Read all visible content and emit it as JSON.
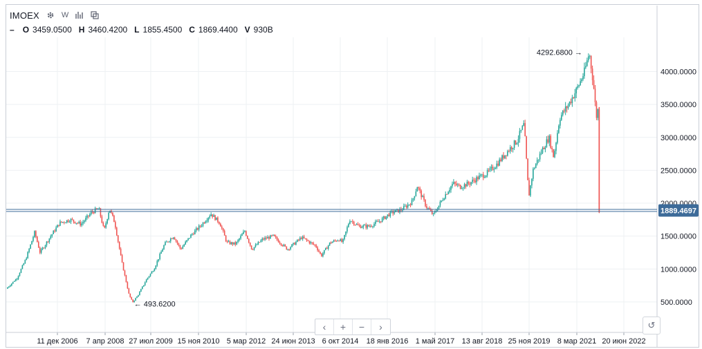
{
  "header": {
    "symbol": "IMOEX",
    "gear_icon": "gear-icon",
    "week_label": "W",
    "bars_icon": "bars-icon",
    "compare_icon": "compare-icon"
  },
  "ohlc": {
    "dash": "–",
    "o_label": "O",
    "o_value": "3459.0500",
    "h_label": "H",
    "h_value": "3460.4200",
    "l_label": "L",
    "l_value": "1855.4500",
    "c_label": "C",
    "c_value": "1869.4400",
    "v_label": "V",
    "v_value": "930B"
  },
  "nav": {
    "left": "‹",
    "zoom_in": "+",
    "zoom_out": "−",
    "right": "›",
    "reset": "↺"
  },
  "colors": {
    "up": "#26a69a",
    "down": "#ef5350",
    "price_line": "#3d6b99",
    "price_badge": "#3d6b99",
    "grid": "#eef0f3",
    "axis_text": "#131722"
  },
  "chart_data": {
    "type": "candlestick",
    "symbol": "IMOEX",
    "interval": "W",
    "y_ticks": [
      "4000.0000",
      "3500.0000",
      "3000.0000",
      "2500.0000",
      "2000.0000",
      "1500.0000",
      "1000.0000",
      "500.0000"
    ],
    "x_ticks": [
      "11 дек 2006",
      "7 апр 2008",
      "27 июл 2009",
      "15 ноя 2010",
      "5 мар 2012",
      "24 июн 2013",
      "6 окт 2014",
      "18 янв 2016",
      "1 май 2017",
      "13 авг 2018",
      "25 ноя 2019",
      "8 мар 2021",
      "20 июн 2022"
    ],
    "current_price": "1889.4697",
    "current_value": 1889.4697,
    "max_annotation": "4292.6800",
    "min_annotation": "493.6200",
    "max_value": 4292.68,
    "min_value": 493.62,
    "ylim": [
      0,
      4600
    ],
    "series": [
      {
        "t": 2005.5,
        "v": 700
      },
      {
        "t": 2005.8,
        "v": 860
      },
      {
        "t": 2006.05,
        "v": 1150
      },
      {
        "t": 2006.3,
        "v": 1560
      },
      {
        "t": 2006.45,
        "v": 1250
      },
      {
        "t": 2006.75,
        "v": 1500
      },
      {
        "t": 2007.0,
        "v": 1700
      },
      {
        "t": 2007.3,
        "v": 1750
      },
      {
        "t": 2007.6,
        "v": 1680
      },
      {
        "t": 2007.9,
        "v": 1860
      },
      {
        "t": 2008.1,
        "v": 1920
      },
      {
        "t": 2008.25,
        "v": 1580
      },
      {
        "t": 2008.4,
        "v": 1920
      },
      {
        "t": 2008.55,
        "v": 1700
      },
      {
        "t": 2008.75,
        "v": 1100
      },
      {
        "t": 2008.95,
        "v": 610
      },
      {
        "t": 2009.05,
        "v": 494
      },
      {
        "t": 2009.2,
        "v": 600
      },
      {
        "t": 2009.45,
        "v": 850
      },
      {
        "t": 2009.65,
        "v": 1000
      },
      {
        "t": 2009.95,
        "v": 1380
      },
      {
        "t": 2010.2,
        "v": 1500
      },
      {
        "t": 2010.4,
        "v": 1300
      },
      {
        "t": 2010.7,
        "v": 1520
      },
      {
        "t": 2011.0,
        "v": 1680
      },
      {
        "t": 2011.25,
        "v": 1840
      },
      {
        "t": 2011.5,
        "v": 1700
      },
      {
        "t": 2011.7,
        "v": 1400
      },
      {
        "t": 2011.95,
        "v": 1380
      },
      {
        "t": 2012.2,
        "v": 1580
      },
      {
        "t": 2012.4,
        "v": 1300
      },
      {
        "t": 2012.7,
        "v": 1450
      },
      {
        "t": 2013.0,
        "v": 1500
      },
      {
        "t": 2013.4,
        "v": 1300
      },
      {
        "t": 2013.8,
        "v": 1480
      },
      {
        "t": 2014.2,
        "v": 1350
      },
      {
        "t": 2014.35,
        "v": 1200
      },
      {
        "t": 2014.6,
        "v": 1400
      },
      {
        "t": 2014.85,
        "v": 1450
      },
      {
        "t": 2014.95,
        "v": 1400
      },
      {
        "t": 2015.15,
        "v": 1750
      },
      {
        "t": 2015.4,
        "v": 1650
      },
      {
        "t": 2015.7,
        "v": 1650
      },
      {
        "t": 2016.0,
        "v": 1730
      },
      {
        "t": 2016.3,
        "v": 1850
      },
      {
        "t": 2016.6,
        "v": 1900
      },
      {
        "t": 2016.9,
        "v": 2020
      },
      {
        "t": 2017.05,
        "v": 2260
      },
      {
        "t": 2017.3,
        "v": 1950
      },
      {
        "t": 2017.5,
        "v": 1820
      },
      {
        "t": 2017.8,
        "v": 2100
      },
      {
        "t": 2018.05,
        "v": 2300
      },
      {
        "t": 2018.25,
        "v": 2250
      },
      {
        "t": 2018.5,
        "v": 2300
      },
      {
        "t": 2018.8,
        "v": 2400
      },
      {
        "t": 2019.0,
        "v": 2450
      },
      {
        "t": 2019.3,
        "v": 2600
      },
      {
        "t": 2019.6,
        "v": 2800
      },
      {
        "t": 2019.85,
        "v": 2950
      },
      {
        "t": 2020.05,
        "v": 3200
      },
      {
        "t": 2020.18,
        "v": 2100
      },
      {
        "t": 2020.3,
        "v": 2500
      },
      {
        "t": 2020.55,
        "v": 2800
      },
      {
        "t": 2020.75,
        "v": 3000
      },
      {
        "t": 2020.88,
        "v": 2700
      },
      {
        "t": 2021.05,
        "v": 3300
      },
      {
        "t": 2021.3,
        "v": 3500
      },
      {
        "t": 2021.55,
        "v": 3750
      },
      {
        "t": 2021.75,
        "v": 4000
      },
      {
        "t": 2021.88,
        "v": 4292
      },
      {
        "t": 2022.0,
        "v": 3800
      },
      {
        "t": 2022.08,
        "v": 3300
      },
      {
        "t": 2022.12,
        "v": 3500
      },
      {
        "t": 2022.16,
        "v": 1889
      }
    ],
    "grid": true,
    "price_axis_position": "right"
  }
}
